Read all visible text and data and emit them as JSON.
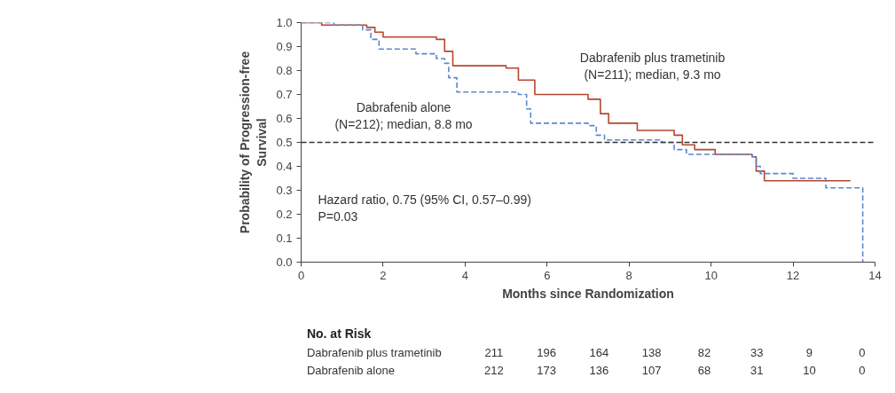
{
  "chart_data": {
    "type": "step",
    "xlabel": "Months since Randomization",
    "ylabel": "Probability of Progression-free\nSurvival",
    "xlim": [
      0,
      14
    ],
    "xticks": [
      0,
      2,
      4,
      6,
      8,
      10,
      12,
      14
    ],
    "ylim": [
      0,
      1
    ],
    "yticks": [
      {
        "value": 0,
        "label": "0.0"
      },
      0.1,
      0.2,
      0.3,
      0.4,
      0.5,
      0.6,
      0.7,
      0.8,
      0.9,
      {
        "value": 1,
        "label": "1.0"
      }
    ],
    "series": [
      {
        "name": "Dabrafenib plus trametinib\n(N=211); median, 9.3 mo",
        "color": "#b5472d",
        "line_style": "solid",
        "x": [
          0,
          0.5,
          1.6,
          1.8,
          2.0,
          3.3,
          3.5,
          3.7,
          5.0,
          5.3,
          5.7,
          7.0,
          7.3,
          7.5,
          8.2,
          9.1,
          9.3,
          9.6,
          10.1,
          11.0,
          11.1,
          11.3,
          13.4
        ],
        "values": [
          1.0,
          0.99,
          0.98,
          0.96,
          0.94,
          0.93,
          0.88,
          0.82,
          0.81,
          0.76,
          0.7,
          0.68,
          0.62,
          0.58,
          0.55,
          0.53,
          0.49,
          0.47,
          0.45,
          0.44,
          0.38,
          0.34,
          0.34
        ]
      },
      {
        "name": "Dabrafenib alone\n(N=212); median, 8.8 mo",
        "color": "#5b87cc",
        "line_style": "dashed",
        "x": [
          0,
          0.8,
          1.5,
          1.7,
          1.9,
          2.8,
          3.3,
          3.5,
          3.6,
          3.8,
          5.3,
          5.5,
          5.6,
          7.0,
          7.2,
          7.4,
          8.8,
          9.1,
          9.4,
          11.0,
          11.1,
          11.2,
          12.0,
          12.8,
          13.7,
          13.7
        ],
        "values": [
          1.0,
          0.99,
          0.97,
          0.93,
          0.89,
          0.87,
          0.85,
          0.83,
          0.77,
          0.71,
          0.7,
          0.64,
          0.58,
          0.57,
          0.53,
          0.51,
          0.5,
          0.47,
          0.45,
          0.44,
          0.4,
          0.37,
          0.35,
          0.31,
          0.31,
          0.0
        ]
      }
    ],
    "ref_lines": [
      {
        "axis": "y",
        "value": 0.5,
        "color": "#333333",
        "line_style": "dashed"
      }
    ],
    "marker": "none",
    "grid": false,
    "annotations": [
      "Hazard ratio, 0.75 (95% CI, 0.57–0.99)\nP=0.03",
      "No. at Risk",
      "Dabrafenib plus trametinib",
      "211",
      "196",
      "164",
      "138",
      "82",
      "33",
      "9",
      "0",
      "Dabrafenib alone",
      "212",
      "173",
      "136",
      "107",
      "68",
      "31",
      "10",
      "0"
    ]
  }
}
